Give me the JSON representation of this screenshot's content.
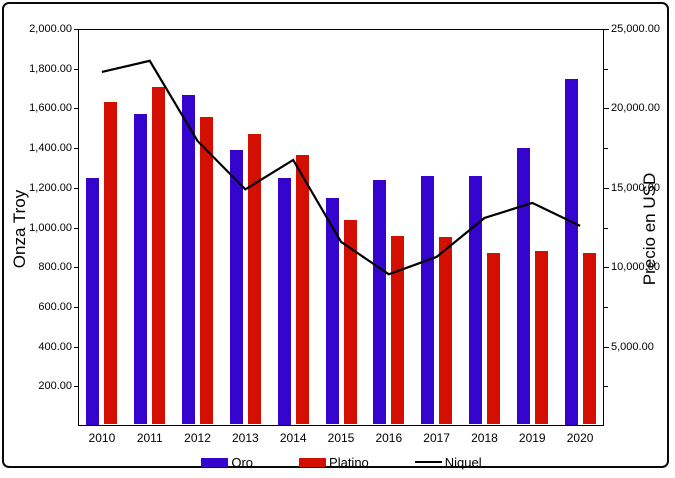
{
  "chart_data": {
    "type": "bar",
    "subtype": "grouped-bars-with-line",
    "categories": [
      "2010",
      "2011",
      "2012",
      "2013",
      "2014",
      "2015",
      "2016",
      "2017",
      "2018",
      "2019",
      "2020"
    ],
    "series": [
      {
        "name": "Oro",
        "type": "bar",
        "axis": "left",
        "color": "#3505CE",
        "values": [
          1250,
          1570,
          1670,
          1390,
          1250,
          1150,
          1240,
          1260,
          1260,
          1400,
          1750
        ]
      },
      {
        "name": "Platino",
        "type": "bar",
        "axis": "left",
        "color": "#D31000",
        "values": [
          1630,
          1710,
          1555,
          1470,
          1365,
          1040,
          955,
          950,
          870,
          880,
          870
        ]
      },
      {
        "name": "Niquel",
        "type": "line",
        "axis": "right",
        "color": "#000000",
        "values": [
          22300,
          23000,
          17950,
          14900,
          16750,
          11600,
          9550,
          10650,
          13100,
          14050,
          12600
        ]
      }
    ],
    "ylabel_left": "Onza Troy",
    "ylabel_right": "Precio en USD",
    "ylim_left": [
      0,
      2000
    ],
    "ylim_right": [
      0,
      25000
    ],
    "grid": false,
    "legend_position": "bottom-center",
    "left_ticks": [
      {
        "value": 200,
        "label": "200.00"
      },
      {
        "value": 400,
        "label": "400.00"
      },
      {
        "value": 600,
        "label": "600.00"
      },
      {
        "value": 800,
        "label": "800.00"
      },
      {
        "value": 1000,
        "label": "1,000.00"
      },
      {
        "value": 1200,
        "label": "1,200.00"
      },
      {
        "value": 1400,
        "label": "1,400.00"
      },
      {
        "value": 1600,
        "label": "1,600.00"
      },
      {
        "value": 1800,
        "label": "1,800.00"
      },
      {
        "value": 2000,
        "label": "2,000.00"
      }
    ],
    "right_ticks": [
      {
        "value": 5000,
        "label": "5,000.00"
      },
      {
        "value": 10000,
        "label": "10,000.00"
      },
      {
        "value": 15000,
        "label": "15,000.00"
      },
      {
        "value": 20000,
        "label": "20,000.00"
      },
      {
        "value": 25000,
        "label": "25,000.00"
      }
    ],
    "right_minor_ticks": [
      2500,
      7500,
      12500,
      17500,
      22500
    ]
  }
}
